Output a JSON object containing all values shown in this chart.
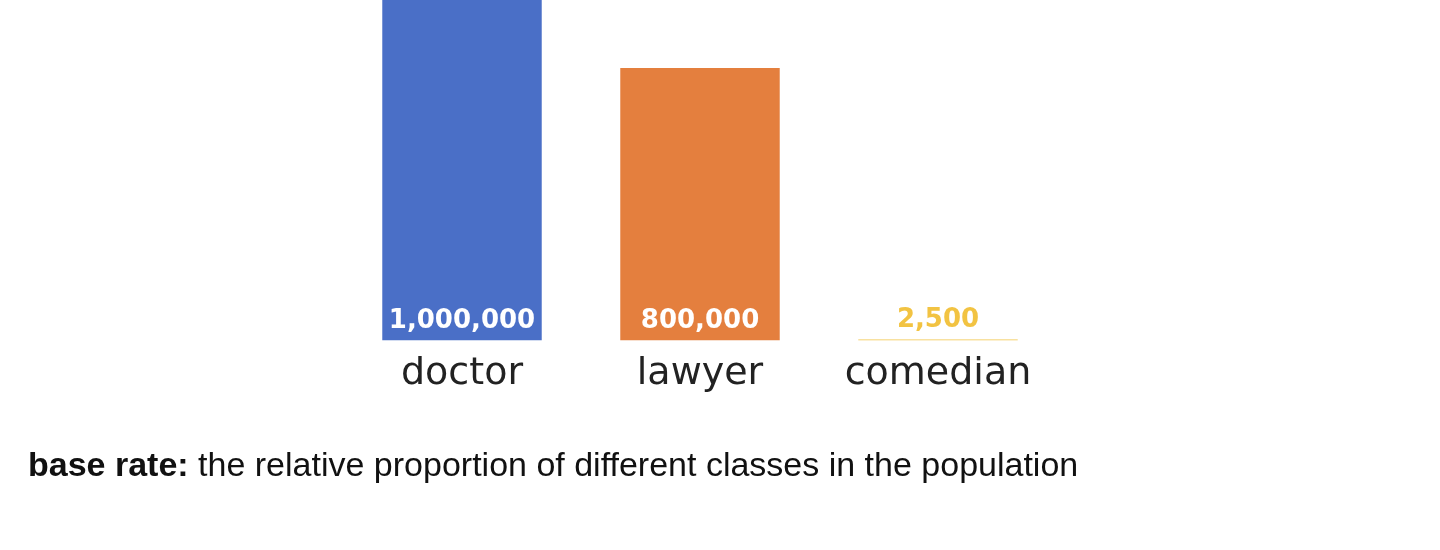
{
  "chart_data": {
    "type": "bar",
    "categories": [
      "doctor",
      "lawyer",
      "comedian"
    ],
    "values": [
      1000000,
      800000,
      2500
    ],
    "colors": [
      "#4a6fc7",
      "#e47f3e",
      "#f2c342"
    ],
    "value_labels": [
      "1,000,000",
      "800,000",
      "2,500"
    ],
    "annotations": [
      "base rate: the relative proportion of different classes in the population"
    ]
  }
}
